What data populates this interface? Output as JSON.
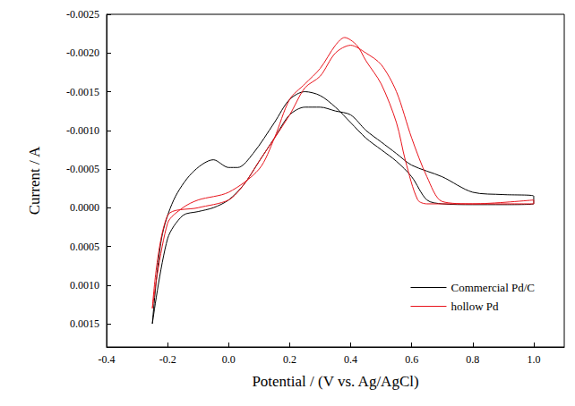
{
  "chart_data": {
    "type": "line",
    "x_label": "Potential / (V vs. Ag/AgCl)",
    "y_label": "Current / A",
    "xlim": [
      -0.4,
      1.1
    ],
    "xticks": [
      {
        "value": -0.4,
        "label": "-0.4"
      },
      {
        "value": -0.2,
        "label": "-0.2"
      },
      {
        "value": 0,
        "label": "0.0"
      },
      0.2,
      0.4,
      0.6,
      0.8,
      {
        "value": 1,
        "label": "1.0"
      }
    ],
    "ylim": [
      -0.0025,
      0.0018
    ],
    "yticks": [
      -0.0025,
      {
        "value": -0.002,
        "label": "-0.0020"
      },
      -0.0015,
      {
        "value": -0.001,
        "label": "-0.0010"
      },
      -0.0005,
      {
        "value": 0,
        "label": "0.0000"
      },
      0.0005,
      {
        "value": 0.001,
        "label": "0.0010"
      },
      0.0015
    ],
    "grid": false,
    "legend": "lower right",
    "series": [
      {
        "name": "Commercial Pd/C",
        "color": "#000000",
        "x": [
          -0.25,
          -0.22,
          -0.18,
          -0.12,
          -0.05,
          0.0,
          0.03,
          0.08,
          0.15,
          0.2,
          0.25,
          0.3,
          0.35,
          0.4,
          0.45,
          0.5,
          0.55,
          0.6,
          0.65,
          0.7,
          0.8,
          0.9,
          1.0,
          1.0,
          0.9,
          0.8,
          0.7,
          0.6,
          0.55,
          0.5,
          0.45,
          0.4,
          0.35,
          0.3,
          0.25,
          0.2,
          0.15,
          0.1,
          0.05,
          0.0,
          -0.05,
          -0.1,
          -0.15,
          -0.2,
          -0.25
        ],
        "values": [
          0.0015,
          0.0004,
          -0.0001,
          -0.00045,
          -0.00062,
          -0.00052,
          -0.00052,
          -0.0007,
          -0.0011,
          -0.0014,
          -0.0015,
          -0.00145,
          -0.0013,
          -0.0011,
          -0.0009,
          -0.00075,
          -0.0006,
          -0.0004,
          -0.0001,
          -5e-05,
          -4e-05,
          -4e-05,
          -5e-05,
          -0.00015,
          -0.00017,
          -0.0002,
          -0.0004,
          -0.00055,
          -0.0007,
          -0.00085,
          -0.001,
          -0.0012,
          -0.00125,
          -0.0013,
          -0.0013,
          -0.0012,
          -0.0009,
          -0.0006,
          -0.0003,
          -0.0001,
          0.0,
          5e-05,
          0.0001,
          0.0004,
          0.0015
        ]
      },
      {
        "name": "hollow Pd",
        "color": "#e8141c",
        "x": [
          -0.25,
          -0.2,
          -0.15,
          -0.1,
          0.0,
          0.1,
          0.15,
          0.2,
          0.25,
          0.3,
          0.35,
          0.38,
          0.42,
          0.45,
          0.5,
          0.55,
          0.58,
          0.62,
          0.65,
          0.8,
          1.0,
          1.0,
          0.8,
          0.7,
          0.65,
          0.6,
          0.55,
          0.5,
          0.45,
          0.4,
          0.35,
          0.3,
          0.25,
          0.2,
          0.1,
          0.05,
          0.0,
          -0.1,
          -0.2,
          -0.25
        ],
        "values": [
          0.0013,
          0.0002,
          0.0,
          -0.0001,
          -0.0002,
          -0.0005,
          -0.0009,
          -0.0014,
          -0.0016,
          -0.0018,
          -0.0021,
          -0.0022,
          -0.0021,
          -0.0019,
          -0.0016,
          -0.0011,
          -0.0006,
          -0.0001,
          -5e-05,
          -5e-05,
          -5e-05,
          -0.0001,
          -5e-05,
          -8e-05,
          -0.0004,
          -0.0009,
          -0.0015,
          -0.00185,
          -0.002,
          -0.0021,
          -0.002,
          -0.0017,
          -0.00155,
          -0.0012,
          -0.0006,
          -0.0003,
          -0.0001,
          0.0,
          0.0001,
          0.0013
        ]
      }
    ]
  }
}
